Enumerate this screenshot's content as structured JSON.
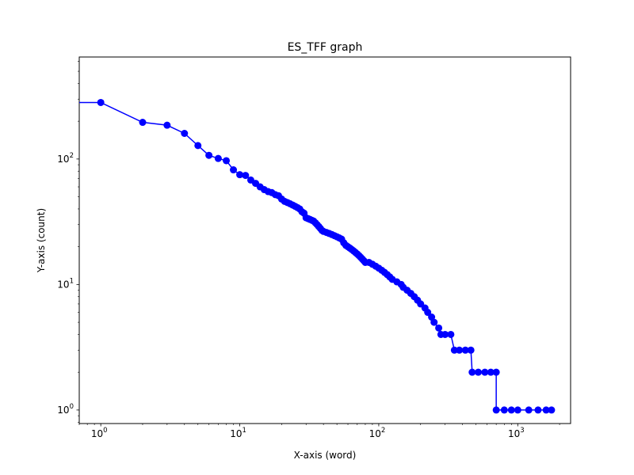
{
  "chart_data": {
    "type": "line",
    "title": "ES_TFF graph",
    "xlabel": "X-axis (word)",
    "ylabel": "Y-axis (count)",
    "xscale": "log",
    "yscale": "log",
    "xlim": [
      0.7,
      2400
    ],
    "ylim": [
      0.78,
      650
    ],
    "grid": false,
    "marker": "circle",
    "line_color": "#0000ff",
    "marker_color": "#0000ff",
    "x_ticks": [
      1,
      10,
      100,
      1000
    ],
    "x_tick_labels": [
      "10",
      "10",
      "10",
      "10"
    ],
    "x_tick_exponents": [
      "0",
      "1",
      "2",
      "3"
    ],
    "y_ticks": [
      1,
      10,
      100
    ],
    "y_tick_labels": [
      "10",
      "10",
      "10"
    ],
    "y_tick_exponents": [
      "0",
      "1",
      "2"
    ],
    "series": [
      {
        "points": [
          [
            0.7,
            282
          ],
          [
            1,
            282
          ],
          [
            2,
            196
          ],
          [
            3,
            186
          ],
          [
            4,
            160
          ],
          [
            5,
            128
          ],
          [
            6,
            107
          ],
          [
            7,
            101
          ],
          [
            8,
            97
          ],
          [
            9,
            82
          ],
          [
            10,
            75
          ],
          [
            11,
            74
          ],
          [
            12,
            68
          ],
          [
            13,
            64
          ],
          [
            14,
            60
          ],
          [
            15,
            57
          ],
          [
            16,
            55
          ],
          [
            17,
            54
          ],
          [
            18,
            52
          ],
          [
            19,
            51
          ],
          [
            20,
            48
          ],
          [
            21,
            46
          ],
          [
            22,
            45
          ],
          [
            23,
            44
          ],
          [
            24,
            43
          ],
          [
            25,
            42
          ],
          [
            26,
            41
          ],
          [
            27,
            40
          ],
          [
            28,
            38
          ],
          [
            29,
            37
          ],
          [
            30,
            34
          ],
          [
            31,
            33.5
          ],
          [
            32,
            33
          ],
          [
            33,
            32.5
          ],
          [
            34,
            32
          ],
          [
            35,
            31
          ],
          [
            36,
            30
          ],
          [
            37,
            29
          ],
          [
            38,
            28
          ],
          [
            39,
            27
          ],
          [
            40,
            26.5
          ],
          [
            42,
            26
          ],
          [
            44,
            25.5
          ],
          [
            46,
            25
          ],
          [
            48,
            24.5
          ],
          [
            50,
            24
          ],
          [
            52,
            23.5
          ],
          [
            54,
            23
          ],
          [
            56,
            21.5
          ],
          [
            58,
            20.5
          ],
          [
            60,
            20
          ],
          [
            62,
            19.5
          ],
          [
            64,
            19
          ],
          [
            66,
            18.5
          ],
          [
            68,
            18
          ],
          [
            70,
            17.5
          ],
          [
            72,
            17
          ],
          [
            74,
            16.5
          ],
          [
            76,
            16
          ],
          [
            78,
            15.5
          ],
          [
            80,
            15
          ],
          [
            85,
            15
          ],
          [
            90,
            14.5
          ],
          [
            95,
            14
          ],
          [
            100,
            13.5
          ],
          [
            105,
            13
          ],
          [
            110,
            12.5
          ],
          [
            115,
            12
          ],
          [
            120,
            11.5
          ],
          [
            125,
            11
          ],
          [
            135,
            10.5
          ],
          [
            145,
            10
          ],
          [
            150,
            9.5
          ],
          [
            160,
            9
          ],
          [
            170,
            8.5
          ],
          [
            180,
            8
          ],
          [
            190,
            7.5
          ],
          [
            200,
            7
          ],
          [
            215,
            6.5
          ],
          [
            225,
            6
          ],
          [
            240,
            5.5
          ],
          [
            250,
            5
          ],
          [
            270,
            4.5
          ],
          [
            280,
            4
          ],
          [
            300,
            4
          ],
          [
            330,
            4
          ],
          [
            350,
            3
          ],
          [
            380,
            3
          ],
          [
            420,
            3
          ],
          [
            460,
            3
          ],
          [
            470,
            2
          ],
          [
            520,
            2
          ],
          [
            580,
            2
          ],
          [
            640,
            2
          ],
          [
            700,
            2
          ],
          [
            700,
            1
          ],
          [
            800,
            1
          ],
          [
            900,
            1
          ],
          [
            1000,
            1
          ],
          [
            1200,
            1
          ],
          [
            1400,
            1
          ],
          [
            1600,
            1
          ],
          [
            1750,
            1
          ]
        ]
      }
    ]
  }
}
